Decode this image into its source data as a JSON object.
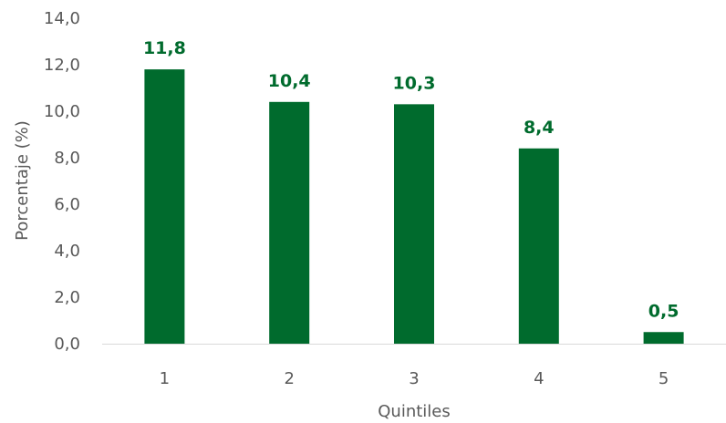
{
  "chart_data": {
    "type": "bar",
    "title": "",
    "xlabel": "Quintiles",
    "ylabel": "Porcentaje (%)",
    "categories": [
      "1",
      "2",
      "3",
      "4",
      "5"
    ],
    "values": [
      11.8,
      10.4,
      10.3,
      8.4,
      0.5
    ],
    "data_labels": [
      "11,8",
      "10,4",
      "10,3",
      "8,4",
      "0,5"
    ],
    "ylim": [
      0,
      14
    ],
    "y_ticks": [
      0,
      2,
      4,
      6,
      8,
      10,
      12,
      14
    ],
    "y_tick_labels": [
      "0,0",
      "2,0",
      "4,0",
      "6,0",
      "8,0",
      "10,0",
      "12,0",
      "14,0"
    ],
    "grid": false,
    "legend": "none",
    "bar_color": "#006B2D",
    "label_color": "#006B2D",
    "axis_color": "#D9D9D9"
  }
}
